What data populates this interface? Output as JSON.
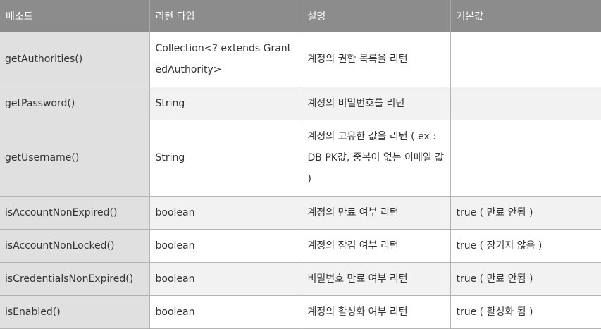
{
  "table": {
    "headers": [
      "메소드",
      "리턴 타입",
      "설명",
      "기본값"
    ],
    "rows": [
      {
        "method": "getAuthorities()",
        "return_type": "Collection<? extends GrantedAuthority>",
        "description": "계정의 권한 목록을 리턴",
        "default": ""
      },
      {
        "method": "getPassword()",
        "return_type": "String",
        "description": "계정의 비밀번호를 리턴",
        "default": ""
      },
      {
        "method": "getUsername()",
        "return_type": "String",
        "description": "계정의 고유한 값을 리턴 ( ex : DB PK값, 중복이 없는 이메일 값 )",
        "default": ""
      },
      {
        "method": "isAccountNonExpired()",
        "return_type": "boolean",
        "description": "계정의 만료 여부 리턴",
        "default": "true ( 만료 안됨 )"
      },
      {
        "method": "isAccountNonLocked()",
        "return_type": "boolean",
        "description": "계정의 잠김 여부 리턴",
        "default": "true ( 잠기지 않음 )"
      },
      {
        "method": "isCredentialsNonExpired()",
        "return_type": "boolean",
        "description": "비밀번호 만료 여부 리턴",
        "default": "true ( 만료 안됨 )"
      },
      {
        "method": "isEnabled()",
        "return_type": "boolean",
        "description": "계정의 활성화 여부 리턴",
        "default": "true ( 활성화 됨 )"
      }
    ]
  },
  "colors": {
    "header_bg": "#8c8c8c",
    "header_text": "#ffffff",
    "method_col_bg": "#e0e0e0",
    "row_alt_bg": "#f2f2f2",
    "border": "#b4b4b4"
  }
}
